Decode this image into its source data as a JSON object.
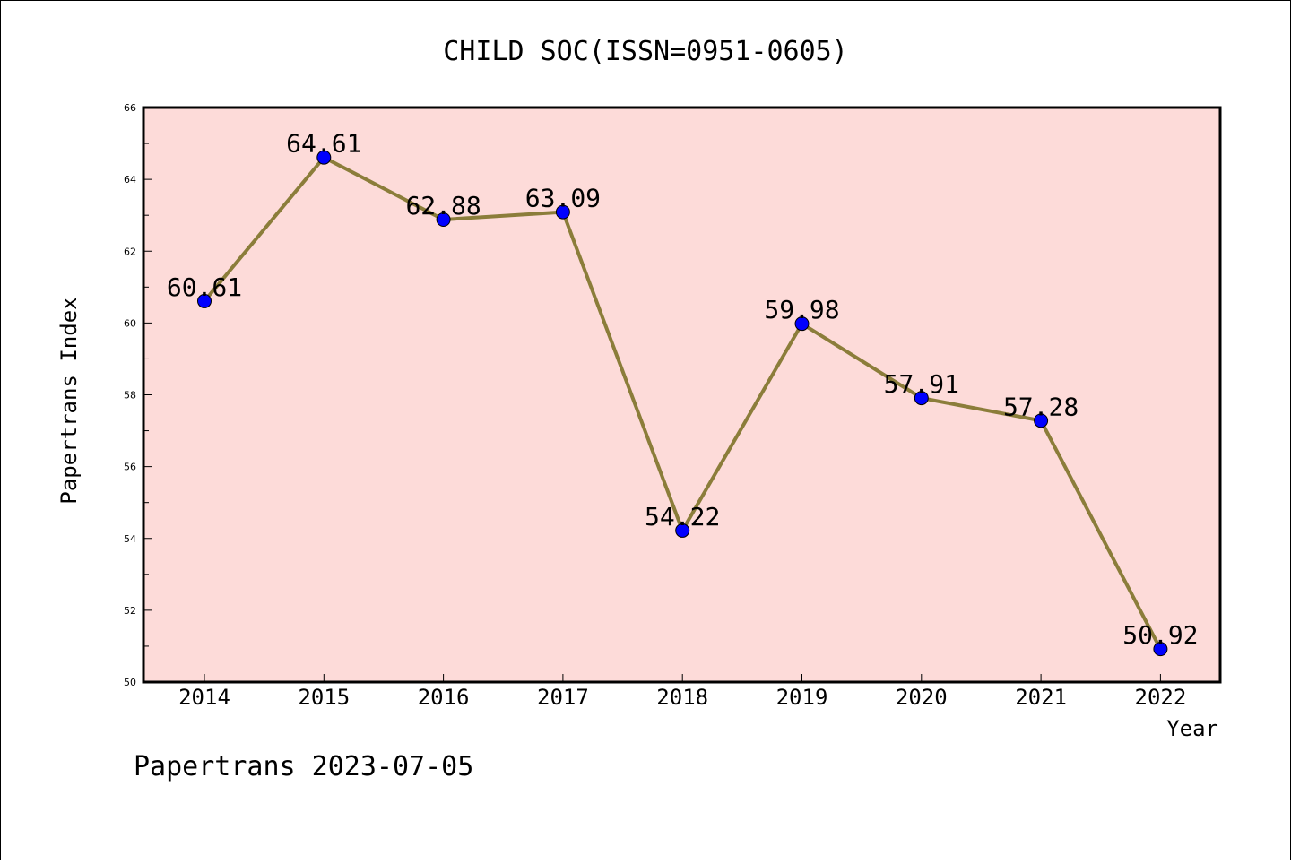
{
  "chart_data": {
    "type": "line",
    "title": "CHILD SOC(ISSN=0951-0605)",
    "xlabel": "Year",
    "ylabel": "Papertrans Index",
    "categories": [
      "2014",
      "2015",
      "2016",
      "2017",
      "2018",
      "2019",
      "2020",
      "2021",
      "2022"
    ],
    "values": [
      60.61,
      64.61,
      62.88,
      63.09,
      54.22,
      59.98,
      57.91,
      57.28,
      50.92
    ],
    "data_labels": [
      "60.61",
      "64.61",
      "62.88",
      "63.09",
      "54.22",
      "59.98",
      "57.91",
      "57.28",
      "50.92"
    ],
    "ylim": [
      50,
      66
    ],
    "yticks": [
      "50",
      "52",
      "54",
      "56",
      "58",
      "60",
      "62",
      "64",
      "66"
    ],
    "grid": false,
    "legend": "none",
    "colors": {
      "plot_background": "#fddbd9",
      "line": "#8b7d3a",
      "marker": "#0000ff"
    },
    "footer": "Papertrans 2023-07-05"
  }
}
